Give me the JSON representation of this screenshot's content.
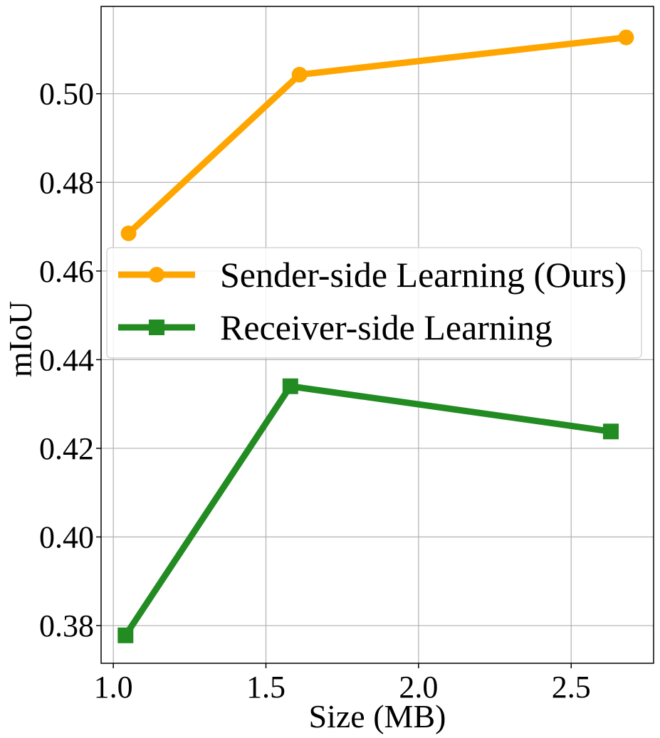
{
  "chart_data": {
    "type": "line",
    "xlabel": "Size (MB)",
    "ylabel": "mIoU",
    "xlim": [
      0.96,
      2.77
    ],
    "ylim": [
      0.3715,
      0.5197
    ],
    "xticks": [
      1.0,
      1.5,
      2.0,
      2.5
    ],
    "xtick_labels": [
      "1.0",
      "1.5",
      "2.0",
      "2.5"
    ],
    "yticks": [
      0.38,
      0.4,
      0.42,
      0.44,
      0.46,
      0.48,
      0.5
    ],
    "ytick_labels": [
      "0.38",
      "0.40",
      "0.42",
      "0.44",
      "0.46",
      "0.48",
      "0.50"
    ],
    "grid": true,
    "legend_position": "center",
    "series": [
      {
        "name": "Sender-side Learning (Ours)",
        "color": "#ffa500",
        "marker": "circle",
        "x": [
          1.05,
          1.61,
          2.68
        ],
        "y": [
          0.4685,
          0.5043,
          0.5127
        ]
      },
      {
        "name": "Receiver-side Learning",
        "color": "#228b22",
        "marker": "square",
        "x": [
          1.04,
          1.58,
          2.63
        ],
        "y": [
          0.3778,
          0.434,
          0.4238
        ]
      }
    ]
  }
}
